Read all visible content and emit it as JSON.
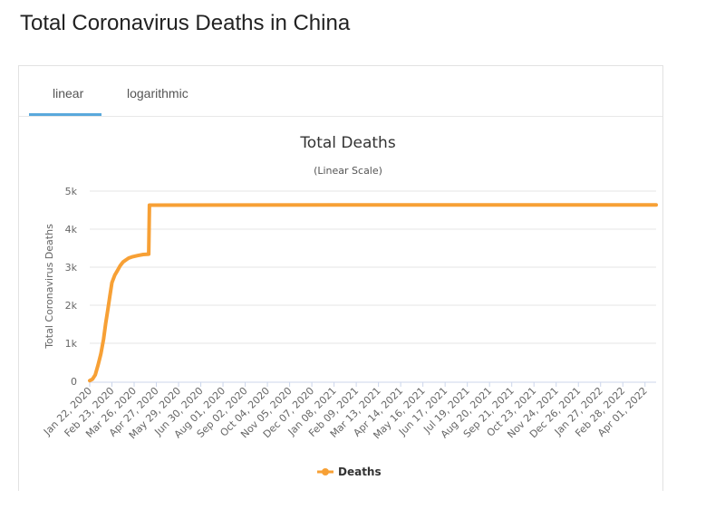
{
  "page": {
    "title": "Total Coronavirus Deaths in China"
  },
  "tabs": [
    {
      "label": "linear",
      "active": true
    },
    {
      "label": "logarithmic",
      "active": false
    }
  ],
  "colors": {
    "series": "#f7a035",
    "tab_active": "#5aa8dc",
    "grid": "#e6e6e6"
  },
  "chart_data": {
    "type": "line",
    "title": "Total Deaths",
    "subtitle": "(Linear Scale)",
    "ylabel": "Total Coronavirus Deaths",
    "xlabel": "",
    "ylim": [
      0,
      5000
    ],
    "yticks": [
      {
        "value": 0,
        "label": "0"
      },
      {
        "value": 1000,
        "label": "1k"
      },
      {
        "value": 2000,
        "label": "2k"
      },
      {
        "value": 3000,
        "label": "3k"
      },
      {
        "value": 4000,
        "label": "4k"
      },
      {
        "value": 5000,
        "label": "5k"
      }
    ],
    "xlim": [
      "2020-01-22",
      "2022-04-17"
    ],
    "xticks": [
      "Jan 22, 2020",
      "Feb 23, 2020",
      "Mar 26, 2020",
      "Apr 27, 2020",
      "May 29, 2020",
      "Jun 30, 2020",
      "Aug 01, 2020",
      "Sep 02, 2020",
      "Oct 04, 2020",
      "Nov 05, 2020",
      "Dec 07, 2020",
      "Jan 08, 2021",
      "Feb 09, 2021",
      "Mar 13, 2021",
      "Apr 14, 2021",
      "May 16, 2021",
      "Jun 17, 2021",
      "Jul 19, 2021",
      "Aug 20, 2021",
      "Sep 21, 2021",
      "Oct 23, 2021",
      "Nov 24, 2021",
      "Dec 26, 2021",
      "Jan 27, 2022",
      "Feb 28, 2022",
      "Apr 01, 2022"
    ],
    "grid": true,
    "legend": {
      "position": "bottom-center"
    },
    "series": [
      {
        "name": "Deaths",
        "color": "#f7a035",
        "points": [
          [
            "2020-01-22",
            17
          ],
          [
            "2020-01-26",
            56
          ],
          [
            "2020-01-30",
            170
          ],
          [
            "2020-02-03",
            425
          ],
          [
            "2020-02-07",
            720
          ],
          [
            "2020-02-11",
            1113
          ],
          [
            "2020-02-14",
            1520
          ],
          [
            "2020-02-17",
            1868
          ],
          [
            "2020-02-20",
            2236
          ],
          [
            "2020-02-23",
            2592
          ],
          [
            "2020-02-27",
            2788
          ],
          [
            "2020-03-02",
            2912
          ],
          [
            "2020-03-06",
            3042
          ],
          [
            "2020-03-10",
            3136
          ],
          [
            "2020-03-14",
            3189
          ],
          [
            "2020-03-18",
            3237
          ],
          [
            "2020-03-24",
            3277
          ],
          [
            "2020-03-31",
            3305
          ],
          [
            "2020-04-08",
            3333
          ],
          [
            "2020-04-16",
            3342
          ],
          [
            "2020-04-17",
            4632
          ],
          [
            "2021-01-15",
            4635
          ],
          [
            "2022-01-01",
            4636
          ],
          [
            "2022-04-17",
            4638
          ]
        ]
      }
    ]
  }
}
